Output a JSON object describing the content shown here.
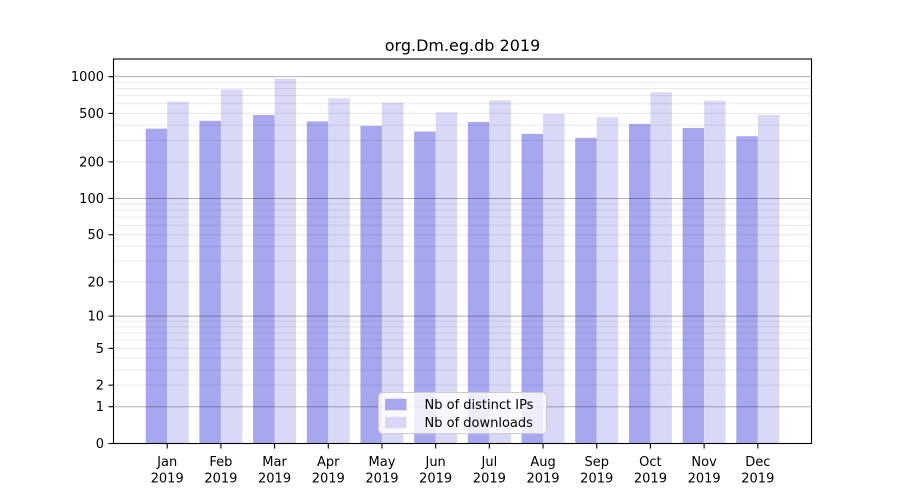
{
  "figure": {
    "background": "#ffffff"
  },
  "chart_data": {
    "type": "bar",
    "title": "org.Dm.eg.db 2019",
    "categories": [
      "Jan",
      "Feb",
      "Mar",
      "Apr",
      "May",
      "Jun",
      "Jul",
      "Aug",
      "Sep",
      "Oct",
      "Nov",
      "Dec"
    ],
    "x_tick_second_line": "2019",
    "series": [
      {
        "name": "Nb of distinct IPs",
        "color": "#a7a7f0",
        "values": [
          375,
          435,
          485,
          430,
          395,
          355,
          425,
          340,
          315,
          410,
          380,
          325
        ]
      },
      {
        "name": "Nb of downloads",
        "color": "#d9d9f7",
        "values": [
          625,
          785,
          960,
          665,
          615,
          510,
          640,
          495,
          465,
          745,
          635,
          485
        ]
      }
    ],
    "y_axis": {
      "scale": "log1p",
      "tick_labels": [
        0,
        1,
        2,
        5,
        10,
        20,
        50,
        100,
        200,
        500,
        1000
      ],
      "max": 1395,
      "major_gridlines": [
        1,
        10,
        100,
        1000
      ],
      "minor_gridline_mantissas": [
        2,
        3,
        4,
        5,
        6,
        7,
        8,
        9
      ],
      "minor_gridline_decades": [
        1,
        10,
        100
      ]
    },
    "legend": {
      "location": "lower center",
      "entries": [
        "Nb of distinct IPs",
        "Nb of downloads"
      ]
    },
    "grid": {
      "major_color": "rgba(0,0,0,0.30)",
      "minor_color": "rgba(0,0,0,0.085)"
    },
    "axis_color": "#000000"
  }
}
